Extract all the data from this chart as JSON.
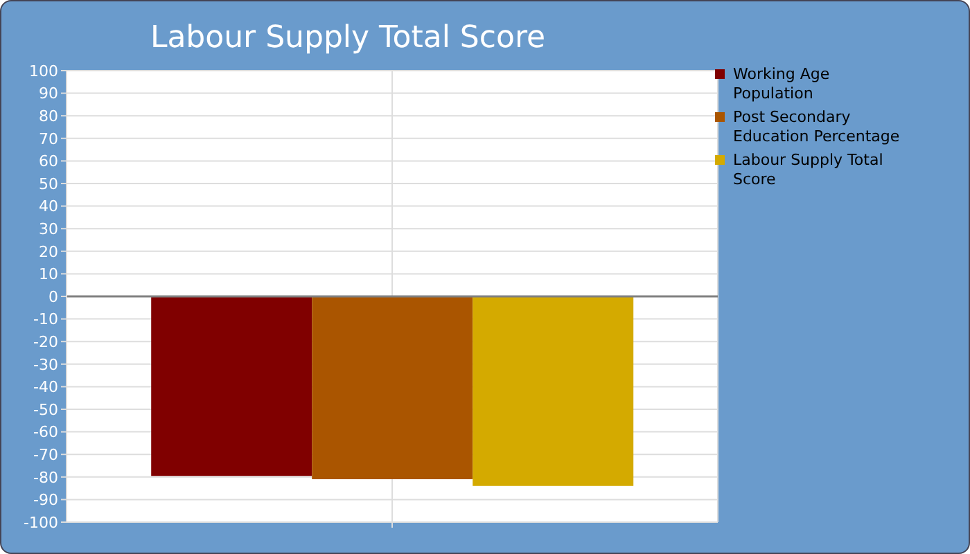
{
  "chart_data": {
    "type": "bar",
    "title": "Labour Supply Total Score",
    "categories": [
      null
    ],
    "series": [
      {
        "name": "Working Age Population",
        "color": "#800000",
        "values": [
          -79.5
        ]
      },
      {
        "name": "Post Secondary Education Percentage",
        "color": "#aa5500",
        "values": [
          -81
        ]
      },
      {
        "name": "Labour Supply Total Score",
        "color": "#d4aa00",
        "values": [
          -84
        ]
      }
    ],
    "ylim": [
      -100,
      100
    ],
    "yticks": [
      -100,
      -90,
      -80,
      -70,
      -60,
      -50,
      -40,
      -30,
      -20,
      -10,
      0,
      10,
      20,
      30,
      40,
      50,
      60,
      70,
      80,
      90,
      100
    ],
    "ref_lines": [
      {
        "axis": "y",
        "value": 0,
        "color": "#808080"
      }
    ],
    "grid": true,
    "legend": "top right"
  }
}
